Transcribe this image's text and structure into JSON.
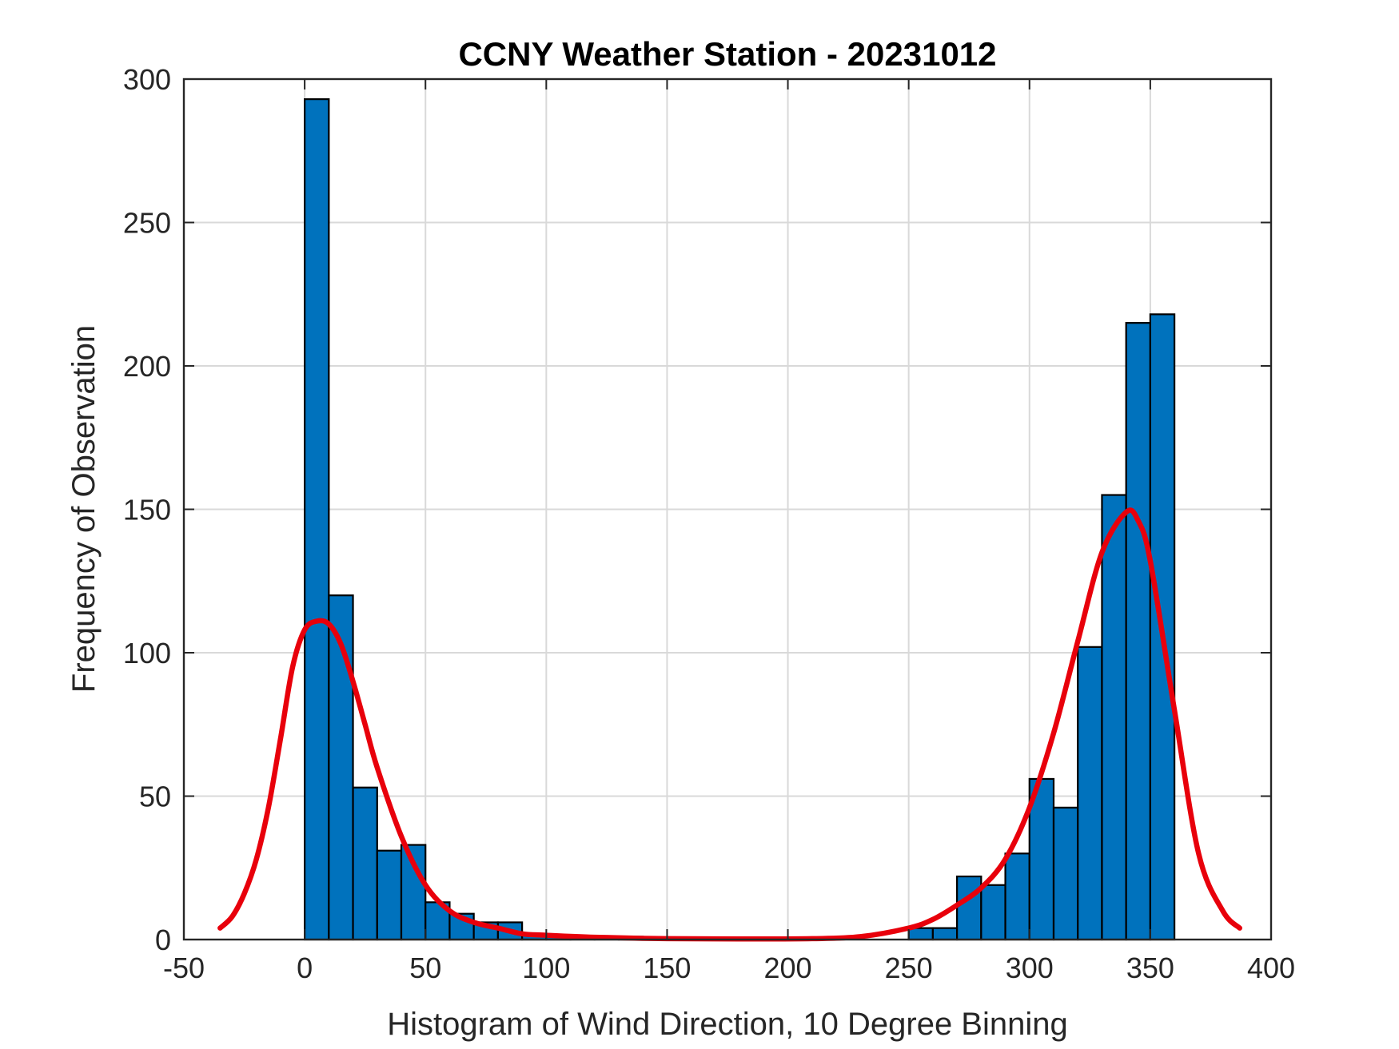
{
  "chart_data": {
    "type": "bar",
    "title": "CCNY Weather Station - 20231012",
    "xlabel": "Histogram of Wind Direction, 10 Degree Binning",
    "ylabel": "Frequency of Observation",
    "xlim": [
      -50,
      400
    ],
    "ylim": [
      0,
      300
    ],
    "xticks": [
      -50,
      0,
      50,
      100,
      150,
      200,
      250,
      300,
      350,
      400
    ],
    "yticks": [
      0,
      50,
      100,
      150,
      200,
      250,
      300
    ],
    "xtick_labels": [
      "-50",
      "0",
      "50",
      "100",
      "150",
      "200",
      "250",
      "300",
      "350",
      "400"
    ],
    "ytick_labels": [
      "0",
      "50",
      "100",
      "150",
      "200",
      "250",
      "300"
    ],
    "grid": true,
    "bin_width": 10,
    "bins": [
      {
        "start": 0,
        "count": 293
      },
      {
        "start": 10,
        "count": 120
      },
      {
        "start": 20,
        "count": 53
      },
      {
        "start": 30,
        "count": 31
      },
      {
        "start": 40,
        "count": 33
      },
      {
        "start": 50,
        "count": 13
      },
      {
        "start": 60,
        "count": 9
      },
      {
        "start": 70,
        "count": 6
      },
      {
        "start": 80,
        "count": 6
      },
      {
        "start": 90,
        "count": 2
      },
      {
        "start": 100,
        "count": 1
      },
      {
        "start": 110,
        "count": 1
      },
      {
        "start": 120,
        "count": 1
      },
      {
        "start": 130,
        "count": 1
      },
      {
        "start": 140,
        "count": 0
      },
      {
        "start": 150,
        "count": 0
      },
      {
        "start": 160,
        "count": 0
      },
      {
        "start": 170,
        "count": 0
      },
      {
        "start": 180,
        "count": 0
      },
      {
        "start": 190,
        "count": 0
      },
      {
        "start": 200,
        "count": 0
      },
      {
        "start": 210,
        "count": 0
      },
      {
        "start": 220,
        "count": 0
      },
      {
        "start": 230,
        "count": 0
      },
      {
        "start": 240,
        "count": 0
      },
      {
        "start": 250,
        "count": 4
      },
      {
        "start": 260,
        "count": 4
      },
      {
        "start": 270,
        "count": 22
      },
      {
        "start": 280,
        "count": 19
      },
      {
        "start": 290,
        "count": 30
      },
      {
        "start": 300,
        "count": 56
      },
      {
        "start": 310,
        "count": 46
      },
      {
        "start": 320,
        "count": 102
      },
      {
        "start": 330,
        "count": 155
      },
      {
        "start": 340,
        "count": 215
      },
      {
        "start": 350,
        "count": 218
      }
    ],
    "fit_curve": {
      "name": "fit",
      "x": [
        -35,
        -30,
        -25,
        -20,
        -15,
        -10,
        -5,
        0,
        5,
        10,
        15,
        20,
        25,
        30,
        40,
        50,
        60,
        70,
        80,
        90,
        100,
        120,
        150,
        180,
        210,
        230,
        250,
        260,
        270,
        280,
        290,
        300,
        310,
        320,
        330,
        340,
        345,
        350,
        360,
        370,
        380,
        387
      ],
      "y": [
        4,
        8,
        16,
        28,
        46,
        70,
        95,
        108,
        111,
        110,
        103,
        90,
        75,
        60,
        36,
        19,
        10,
        6,
        4,
        2,
        1.5,
        0.8,
        0.3,
        0.2,
        0.3,
        1,
        4,
        7,
        12,
        18,
        28,
        46,
        72,
        104,
        135,
        149,
        146,
        132,
        80,
        30,
        10,
        4
      ]
    },
    "colors": {
      "bar_fill": "#0072bd",
      "bar_edge": "#000000",
      "curve": "#e8000b",
      "grid": "#d9d9d9"
    }
  }
}
